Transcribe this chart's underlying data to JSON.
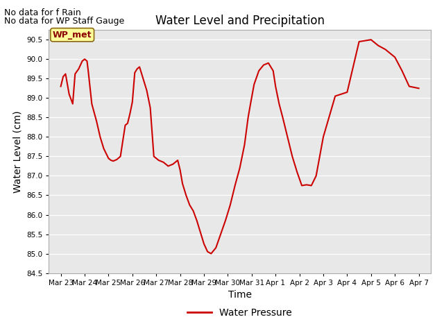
{
  "title": "Water Level and Precipitation",
  "xlabel": "Time",
  "ylabel": "Water Level (cm)",
  "ylim": [
    84.5,
    90.75
  ],
  "background_color": "#e8e8e8",
  "line_color": "#cc0000",
  "line_width": 1.5,
  "legend_label": "Water Pressure",
  "no_data_text1": "No data for f Rain",
  "no_data_text2": "No data for WP Staff Gauge",
  "wp_met_label": "WP_met",
  "x_tick_labels": [
    "Mar 23",
    "Mar 24",
    "Mar 25",
    "Mar 26",
    "Mar 27",
    "Mar 28",
    "Mar 29",
    "Mar 30",
    "Mar 31",
    "Apr 1",
    "Apr 2",
    "Apr 3",
    "Apr 4",
    "Apr 5",
    "Apr 6",
    "Apr 7"
  ],
  "x_ticks": [
    0,
    1,
    2,
    3,
    4,
    5,
    6,
    7,
    8,
    9,
    10,
    11,
    12,
    13,
    14,
    15
  ],
  "x_data": [
    0.0,
    0.1,
    0.2,
    0.35,
    0.5,
    0.6,
    0.75,
    0.9,
    1.0,
    1.1,
    1.15,
    1.3,
    1.5,
    1.65,
    1.8,
    2.0,
    2.1,
    2.2,
    2.35,
    2.5,
    2.7,
    2.8,
    2.9,
    3.0,
    3.1,
    3.2,
    3.3,
    3.45,
    3.6,
    3.75,
    3.9,
    4.1,
    4.3,
    4.5,
    4.7,
    4.9,
    5.0,
    5.1,
    5.25,
    5.4,
    5.55,
    5.7,
    5.85,
    6.0,
    6.15,
    6.3,
    6.5,
    6.7,
    6.9,
    7.1,
    7.3,
    7.5,
    7.7,
    7.85,
    7.95,
    8.1,
    8.3,
    8.5,
    8.7,
    8.9,
    9.0,
    9.15,
    9.3,
    9.5,
    9.7,
    9.9,
    10.1,
    10.3,
    10.5,
    10.7,
    11.0,
    11.5,
    12.0,
    12.5,
    13.0,
    13.3,
    13.6,
    13.8,
    14.0,
    14.3,
    14.6,
    15.0
  ],
  "y_data": [
    89.3,
    89.55,
    89.62,
    89.1,
    88.85,
    89.62,
    89.75,
    89.95,
    90.0,
    89.95,
    89.7,
    88.85,
    88.4,
    88.0,
    87.7,
    87.45,
    87.4,
    87.38,
    87.42,
    87.5,
    88.3,
    88.35,
    88.6,
    88.9,
    89.65,
    89.75,
    89.8,
    89.5,
    89.2,
    88.75,
    87.5,
    87.4,
    87.35,
    87.25,
    87.3,
    87.4,
    87.15,
    86.8,
    86.5,
    86.25,
    86.1,
    85.85,
    85.55,
    85.25,
    85.05,
    85.0,
    85.15,
    85.5,
    85.85,
    86.25,
    86.75,
    87.2,
    87.8,
    88.5,
    88.85,
    89.35,
    89.7,
    89.85,
    89.9,
    89.7,
    89.3,
    88.85,
    88.5,
    88.0,
    87.5,
    87.1,
    86.75,
    86.77,
    86.75,
    87.0,
    88.0,
    89.05,
    89.15,
    90.45,
    90.5,
    90.35,
    90.25,
    90.15,
    90.05,
    89.7,
    89.3,
    89.25
  ]
}
